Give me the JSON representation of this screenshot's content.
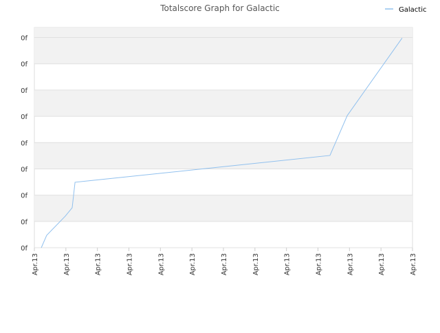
{
  "chart_data": {
    "type": "line",
    "title": "Totalscore Graph for Galactic",
    "series": [
      {
        "name": "Galactic",
        "color": "#90c0ee",
        "x": [
          0.22,
          0.39,
          0.98,
          1.2,
          1.29,
          9.38,
          9.93,
          11.67
        ],
        "values": [
          0,
          0.47,
          1.2,
          1.52,
          2.49,
          3.51,
          5.03,
          7.98
        ]
      }
    ],
    "xlim": [
      0,
      12
    ],
    "xticks": [
      {
        "value": 0,
        "label": "Apr.13"
      },
      {
        "value": 1,
        "label": "Apr.13"
      },
      {
        "value": 2,
        "label": "Apr.13"
      },
      {
        "value": 3,
        "label": "Apr.13"
      },
      {
        "value": 4,
        "label": "Apr.13"
      },
      {
        "value": 5,
        "label": "Apr.13"
      },
      {
        "value": 6,
        "label": "Apr.13"
      },
      {
        "value": 7,
        "label": "Apr.13"
      },
      {
        "value": 8,
        "label": "Apr.13"
      },
      {
        "value": 9,
        "label": "Apr.13"
      },
      {
        "value": 10,
        "label": "Apr.13"
      },
      {
        "value": 11,
        "label": "Apr.13"
      },
      {
        "value": 12,
        "label": "Apr.13"
      }
    ],
    "ylim": [
      0,
      8.38
    ],
    "yticks": [
      {
        "value": 0,
        "label": "0f"
      },
      {
        "value": 1,
        "label": "0f"
      },
      {
        "value": 2,
        "label": "0f"
      },
      {
        "value": 3,
        "label": "0f"
      },
      {
        "value": 4,
        "label": "0f"
      },
      {
        "value": 5,
        "label": "0f"
      },
      {
        "value": 6,
        "label": "0f"
      },
      {
        "value": 7,
        "label": "0f"
      },
      {
        "value": 8,
        "label": "0f"
      }
    ],
    "grid": true,
    "legend": "top-right"
  }
}
